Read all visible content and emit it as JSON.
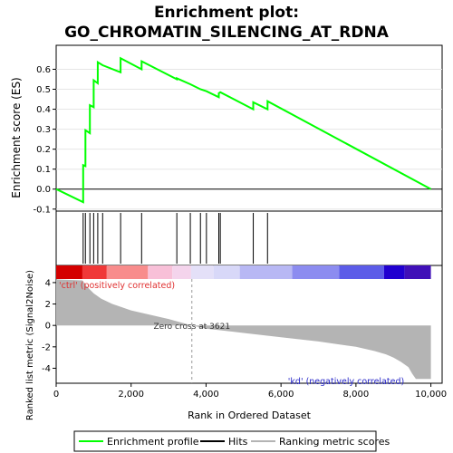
{
  "chart_data": {
    "type": "line",
    "title_line1": "Enrichment plot:",
    "title_line2": "GO_CHROMATIN_SILENCING_AT_RDNA",
    "es_ylabel": "Enrichment score (ES)",
    "rank_ylabel": "Ranked list metric (Signal2Noise)",
    "xlabel": "Rank in Ordered Dataset",
    "x_ticks": [
      0,
      2000,
      4000,
      6000,
      8000,
      10000
    ],
    "x_tick_labels": [
      "0",
      "2,000",
      "4,000",
      "6,000",
      "8,000",
      "10,000"
    ],
    "xlim": [
      0,
      10300
    ],
    "es_ylim": [
      -0.11,
      0.72
    ],
    "es_ticks": [
      -0.1,
      0.0,
      0.1,
      0.2,
      0.3,
      0.4,
      0.5,
      0.6
    ],
    "es_tick_labels": [
      "-0.1",
      "0.0",
      "0.1",
      "0.2",
      "0.3",
      "0.4",
      "0.5",
      "0.6"
    ],
    "rank_ylim": [
      -5.4,
      5.6
    ],
    "rank_ticks": [
      -4,
      -2,
      0,
      2,
      4
    ],
    "rank_tick_labels": [
      "-4",
      "-2",
      "0",
      "2",
      "4"
    ],
    "enrichment_profile": {
      "x": [
        0,
        720,
        720,
        780,
        780,
        900,
        900,
        1000,
        1000,
        1110,
        1110,
        1240,
        1240,
        1720,
        1720,
        2280,
        2280,
        3220,
        3220,
        3580,
        3580,
        3850,
        3850,
        4010,
        4010,
        4340,
        4340,
        4380,
        4380,
        5260,
        5260,
        5640,
        5640,
        10000
      ],
      "y": [
        0.0,
        -0.065,
        0.12,
        0.115,
        0.295,
        0.28,
        0.42,
        0.41,
        0.545,
        0.53,
        0.635,
        0.62,
        0.62,
        0.585,
        0.655,
        0.6,
        0.64,
        0.55,
        0.555,
        0.525,
        0.525,
        0.5,
        0.5,
        0.49,
        0.49,
        0.46,
        0.48,
        0.485,
        0.485,
        0.4,
        0.435,
        0.4,
        0.44,
        0.0
      ]
    },
    "hits": [
      720,
      780,
      900,
      1000,
      1110,
      1240,
      1720,
      2280,
      3220,
      3580,
      3850,
      4010,
      4340,
      4380,
      5260,
      5640
    ],
    "zero_cross": 3621,
    "zero_cross_label": "Zero cross at 3621",
    "pos_label": "'ctrl' (positively correlated)",
    "neg_label": "'kd' (negatively correlated)",
    "ranking_metric": {
      "x": [
        0,
        700,
        800,
        1000,
        1200,
        1500,
        2000,
        2500,
        3000,
        3621,
        4000,
        5000,
        6000,
        7000,
        7500,
        8000,
        8500,
        8800,
        9000,
        9200,
        9400,
        9500,
        9600,
        10000
      ],
      "y": [
        4.3,
        4.2,
        3.7,
        3.0,
        2.5,
        2.0,
        1.4,
        1.0,
        0.6,
        0.0,
        -0.3,
        -0.7,
        -1.1,
        -1.5,
        -1.75,
        -2.0,
        -2.4,
        -2.7,
        -3.0,
        -3.4,
        -3.9,
        -4.5,
        -5.0,
        -5.0
      ]
    },
    "colorbar": [
      {
        "x0": 0,
        "x1": 700,
        "color": "#d40000"
      },
      {
        "x0": 700,
        "x1": 1350,
        "color": "#f03838"
      },
      {
        "x0": 1350,
        "x1": 2450,
        "color": "#f88c8c"
      },
      {
        "x0": 2450,
        "x1": 3100,
        "color": "#f8c0d8"
      },
      {
        "x0": 3100,
        "x1": 3600,
        "color": "#f4d4ec"
      },
      {
        "x0": 3600,
        "x1": 4200,
        "color": "#e4e0f8"
      },
      {
        "x0": 4200,
        "x1": 4900,
        "color": "#d8d8f8"
      },
      {
        "x0": 4900,
        "x1": 6300,
        "color": "#b8b8f4"
      },
      {
        "x0": 6300,
        "x1": 7550,
        "color": "#8c8cf0"
      },
      {
        "x0": 7550,
        "x1": 8750,
        "color": "#5c5ce8"
      },
      {
        "x0": 8750,
        "x1": 9300,
        "color": "#2000d0"
      },
      {
        "x0": 9300,
        "x1": 10000,
        "color": "#4010b8"
      }
    ],
    "legend": [
      {
        "label": "Enrichment profile",
        "color": "#00ff00"
      },
      {
        "label": "Hits",
        "color": "#000000"
      },
      {
        "label": "Ranking metric scores",
        "color": "#b4b4b4"
      }
    ],
    "colors": {
      "profile": "#00ff00",
      "hits": "#000000",
      "metric": "#b4b4b4",
      "pos_label": "#e03030",
      "neg_label": "#2828c8"
    }
  }
}
